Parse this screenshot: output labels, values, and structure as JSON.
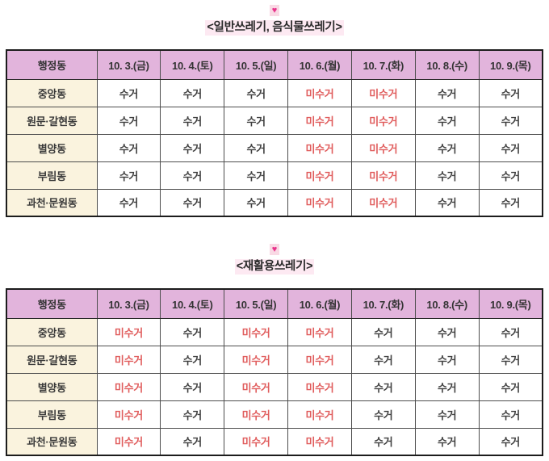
{
  "colors": {
    "header_bg": "#e2b4dc",
    "label_bg": "#faf3de",
    "cell_bg": "#ffffff",
    "border_outer": "#1c1c1c",
    "border_inner": "#4d4d4d",
    "text_dark": "#3f3f3f",
    "text_red": "#e05c5c",
    "title_bg": "#fde9f2",
    "heart_color": "#e8348c",
    "heart_bg": "#f9d9e4"
  },
  "decor": {
    "heart_glyph": "♥"
  },
  "legend": {
    "collected": "수거",
    "not_collected": "미수거"
  },
  "sections": [
    {
      "title": "<일반쓰레기, 음식물쓰레기>",
      "table": {
        "headers": [
          "행정동",
          "10. 3.(금)",
          "10. 4.(토)",
          "10. 5.(일)",
          "10. 6.(월)",
          "10. 7.(화)",
          "10. 8.(수)",
          "10. 9.(목)"
        ],
        "rows": [
          {
            "label": "중앙동",
            "values": [
              "수거",
              "수거",
              "수거",
              "미수거",
              "미수거",
              "수거",
              "수거"
            ]
          },
          {
            "label": "원문·갈현동",
            "values": [
              "수거",
              "수거",
              "수거",
              "미수거",
              "미수거",
              "수거",
              "수거"
            ]
          },
          {
            "label": "별양동",
            "values": [
              "수거",
              "수거",
              "수거",
              "미수거",
              "미수거",
              "수거",
              "수거"
            ]
          },
          {
            "label": "부림동",
            "values": [
              "수거",
              "수거",
              "수거",
              "미수거",
              "미수거",
              "수거",
              "수거"
            ]
          },
          {
            "label": "과천·문원동",
            "values": [
              "수거",
              "수거",
              "수거",
              "미수거",
              "미수거",
              "수거",
              "수거"
            ]
          }
        ]
      }
    },
    {
      "title": "<재활용쓰레기>",
      "table": {
        "headers": [
          "행정동",
          "10. 3.(금)",
          "10. 4.(토)",
          "10. 5.(일)",
          "10. 6.(월)",
          "10. 7.(화)",
          "10. 8.(수)",
          "10. 9.(목)"
        ],
        "rows": [
          {
            "label": "중앙동",
            "values": [
              "미수거",
              "수거",
              "미수거",
              "미수거",
              "수거",
              "수거",
              "수거"
            ]
          },
          {
            "label": "원문·갈현동",
            "values": [
              "미수거",
              "수거",
              "미수거",
              "미수거",
              "수거",
              "수거",
              "수거"
            ]
          },
          {
            "label": "별양동",
            "values": [
              "미수거",
              "수거",
              "미수거",
              "미수거",
              "수거",
              "수거",
              "수거"
            ]
          },
          {
            "label": "부림동",
            "values": [
              "미수거",
              "수거",
              "미수거",
              "미수거",
              "수거",
              "수거",
              "수거"
            ]
          },
          {
            "label": "과천·문원동",
            "values": [
              "미수거",
              "수거",
              "미수거",
              "미수거",
              "수거",
              "수거",
              "수거"
            ]
          }
        ]
      }
    }
  ]
}
